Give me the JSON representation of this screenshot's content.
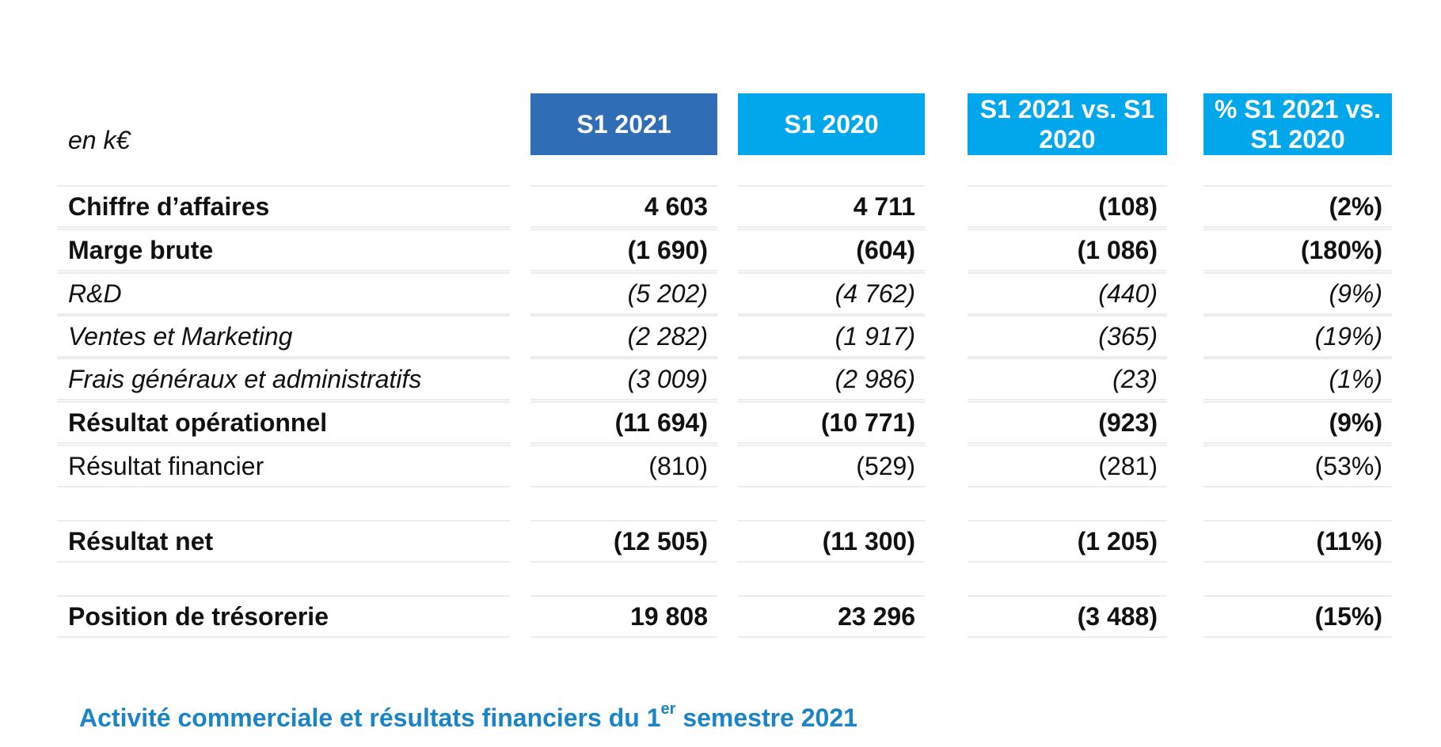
{
  "unit_label": "en k€",
  "headers": {
    "s1_2021": "S1 2021",
    "s1_2020": "S1 2020",
    "diff": "S1 2021 vs. S1 2020",
    "pct": "% S1 2021 vs. S1 2020"
  },
  "rows": [
    {
      "label": "Chiffre d’affaires",
      "s1_2021": "4 603",
      "s1_2020": "4 711",
      "diff": "(108)",
      "pct": "(2%)",
      "style": "bold"
    },
    {
      "label": "Marge brute",
      "s1_2021": "(1 690)",
      "s1_2020": "(604)",
      "diff": "(1 086)",
      "pct": "(180%)",
      "style": "bold"
    },
    {
      "label": "R&D",
      "s1_2021": "(5 202)",
      "s1_2020": "(4 762)",
      "diff": "(440)",
      "pct": "(9%)",
      "style": "italic"
    },
    {
      "label": "Ventes et Marketing",
      "s1_2021": "(2 282)",
      "s1_2020": "(1 917)",
      "diff": "(365)",
      "pct": "(19%)",
      "style": "italic"
    },
    {
      "label": "Frais généraux et administratifs",
      "s1_2021": "(3 009)",
      "s1_2020": "(2 986)",
      "diff": "(23)",
      "pct": "(1%)",
      "style": "italic"
    },
    {
      "label": "Résultat opérationnel",
      "s1_2021": "(11 694)",
      "s1_2020": "(10 771)",
      "diff": "(923)",
      "pct": "(9%)",
      "style": "bold"
    },
    {
      "label": "Résultat financier",
      "s1_2021": "(810)",
      "s1_2020": "(529)",
      "diff": "(281)",
      "pct": "(53%)",
      "style": "plain"
    },
    {
      "label": "Résultat net",
      "s1_2021": "(12 505)",
      "s1_2020": "(11 300)",
      "diff": "(1 205)",
      "pct": "(11%)",
      "style": "bold"
    },
    {
      "label": "Position de trésorerie",
      "s1_2021": "19 808",
      "s1_2020": "23 296",
      "diff": "(3 488)",
      "pct": "(15%)",
      "style": "bold"
    }
  ],
  "caption": {
    "before": "Activité commerciale et résultats financiers du 1",
    "sup": "er",
    "after": " semestre 2021"
  }
}
